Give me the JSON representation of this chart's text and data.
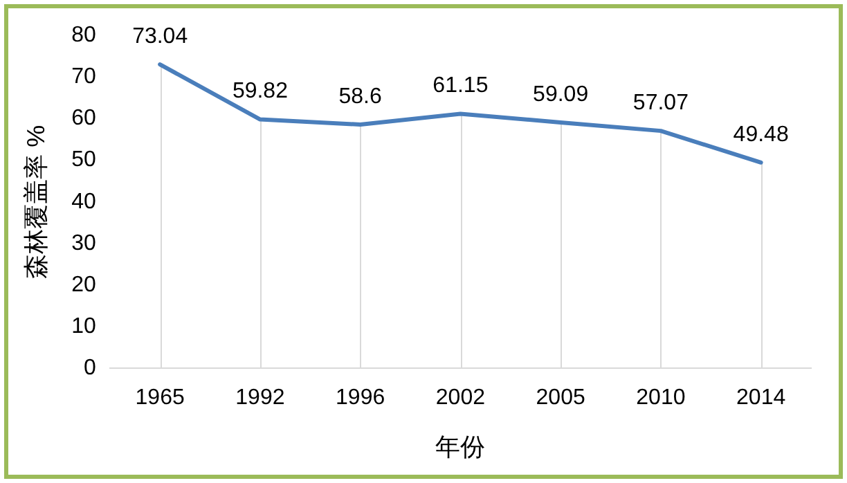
{
  "chart_data": {
    "type": "line",
    "xlabel": "年份",
    "ylabel": "森林覆盖率 %",
    "categories": [
      "1965",
      "1992",
      "1996",
      "2002",
      "2005",
      "2010",
      "2014"
    ],
    "values": [
      73.04,
      59.82,
      58.6,
      61.15,
      59.09,
      57.07,
      49.48
    ],
    "color": "#4a7ebb",
    "ylim": [
      0,
      80
    ],
    "yticks": [
      0,
      10,
      20,
      30,
      40,
      50,
      60,
      70,
      80
    ],
    "grid": "x",
    "legend": false,
    "marker": "none",
    "data_labels": true
  }
}
